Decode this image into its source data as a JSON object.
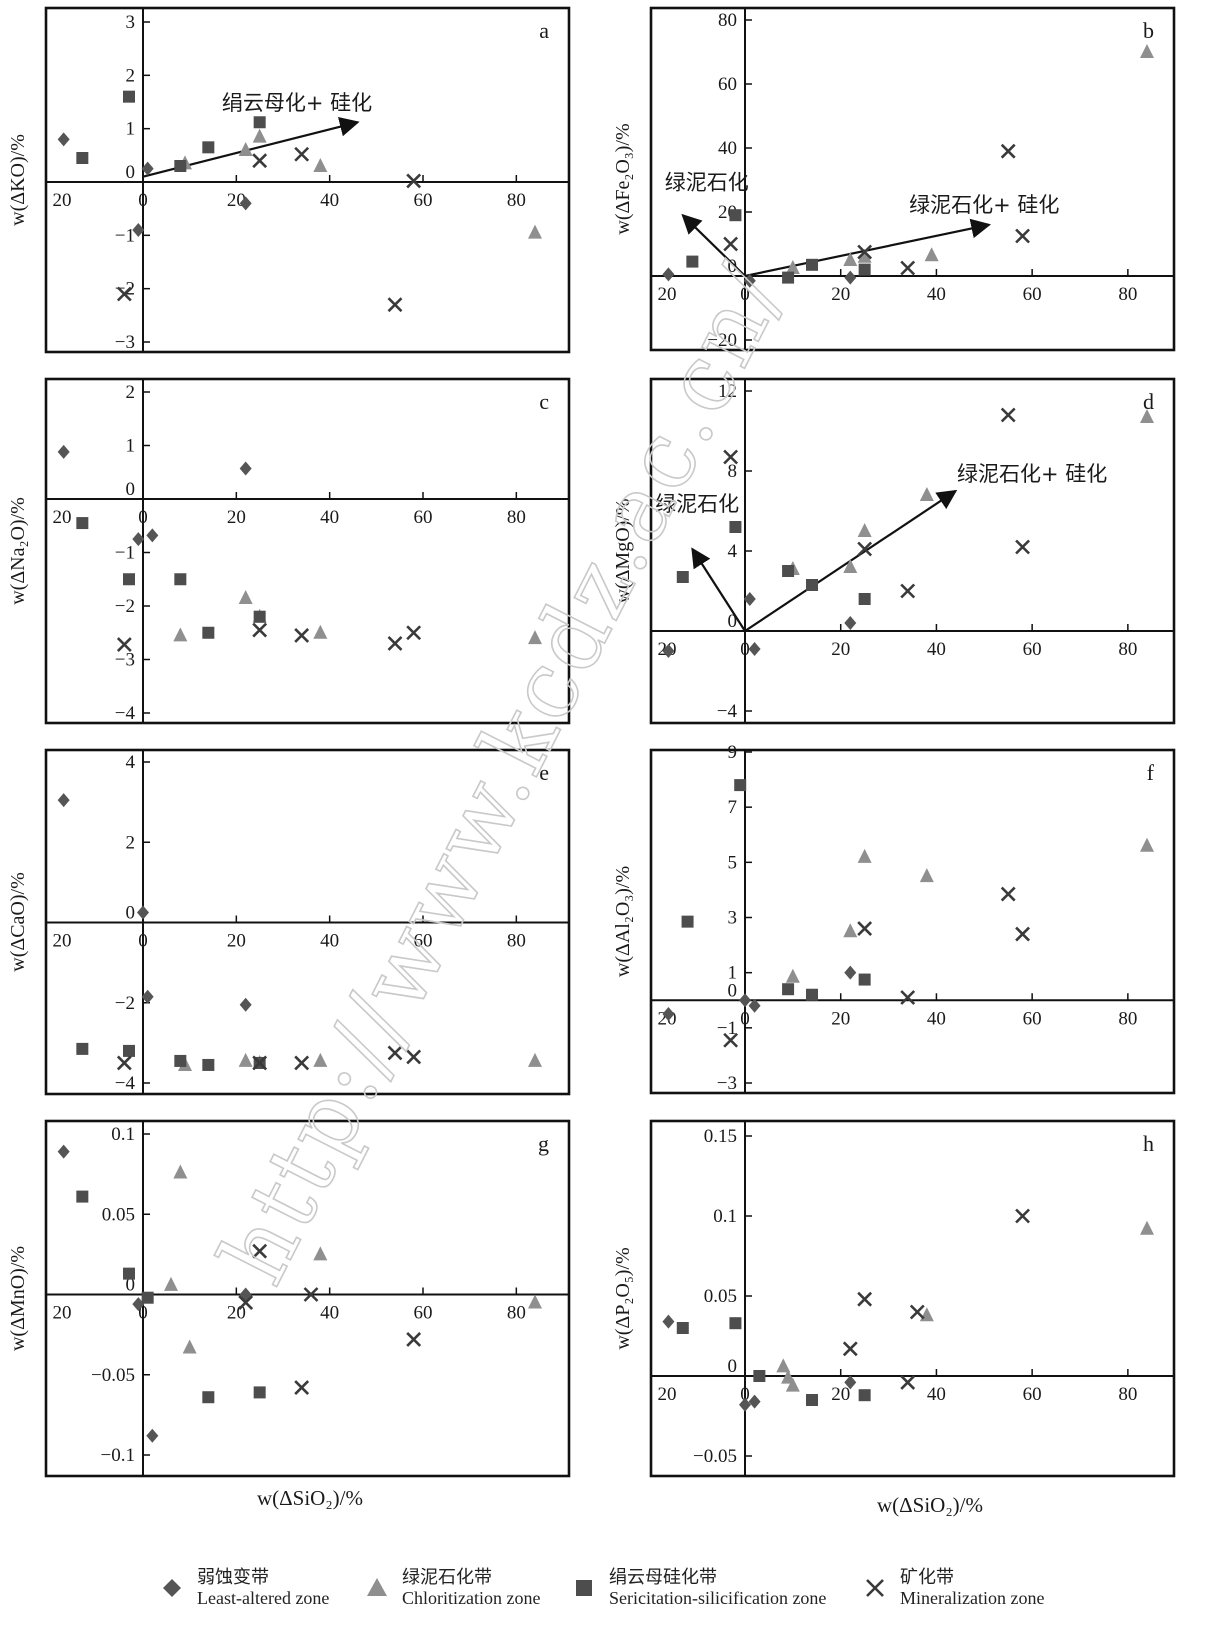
{
  "colors": {
    "diamond": "#555555",
    "triangle": "#8f8f8f",
    "square": "#4d4d4d",
    "cross": "#3a3a3a",
    "axis": "#111111"
  },
  "watermark": "http://www.kcdz.ac.cn/",
  "x_title_left": "w(ΔSiO₂)/%",
  "x_title_right": "w(ΔSiO₂)/%",
  "legend": [
    {
      "symbol": "diamond",
      "zh": "弱蚀变带",
      "en": "Least-altered zone"
    },
    {
      "symbol": "triangle",
      "zh": "绿泥石化带",
      "en": "Chloritization zone"
    },
    {
      "symbol": "square",
      "zh": "绢云母硅化带",
      "en": "Sericitation-silicification zone"
    },
    {
      "symbol": "cross",
      "zh": "矿化带",
      "en": "Mineralization zone"
    }
  ],
  "chart_data": [
    {
      "id": "a",
      "type": "scatter",
      "label": "a",
      "ylabel": "w(ΔKO)/%",
      "xlim": [
        -20,
        90
      ],
      "ylim": [
        -3,
        3
      ],
      "xticks": [
        -20,
        0,
        20,
        40,
        60,
        80
      ],
      "xtick_labels": [
        "20",
        "0",
        "20",
        "40",
        "60",
        "80"
      ],
      "yticks": [
        3,
        2,
        1,
        0,
        -1,
        -2,
        -3
      ],
      "ytick_labels": [
        "3",
        "2",
        "1",
        "0",
        "−1",
        "−2",
        "−3"
      ],
      "series": [
        {
          "symbol": "diamond",
          "points": [
            [
              -17,
              0.8
            ],
            [
              1,
              0.25
            ],
            [
              22,
              -0.4
            ],
            [
              -1,
              -0.9
            ]
          ]
        },
        {
          "symbol": "triangle",
          "points": [
            [
              9,
              0.35
            ],
            [
              22,
              0.6
            ],
            [
              25,
              0.85
            ],
            [
              38,
              0.3
            ],
            [
              84,
              -0.95
            ]
          ]
        },
        {
          "symbol": "square",
          "points": [
            [
              -13,
              0.45
            ],
            [
              -3,
              1.6
            ],
            [
              8,
              0.3
            ],
            [
              14,
              0.65
            ],
            [
              25,
              1.12
            ]
          ]
        },
        {
          "symbol": "cross",
          "points": [
            [
              -4,
              -2.1
            ],
            [
              25,
              0.4
            ],
            [
              34,
              0.52
            ],
            [
              54,
              -2.3
            ],
            [
              58,
              0.02
            ]
          ]
        }
      ],
      "annotations": [
        {
          "text": "绢云母化+ 硅化",
          "arrow_from": [
            0,
            0.1
          ],
          "arrow_to": [
            46,
            1.12
          ],
          "text_at": [
            33,
            1.35
          ]
        }
      ]
    },
    {
      "id": "b",
      "type": "scatter",
      "label": "b",
      "ylabel": "w(ΔFe₂O₃)/%",
      "xlim": [
        -20,
        90
      ],
      "ylim": [
        -20,
        80
      ],
      "xticks": [
        -20,
        0,
        20,
        40,
        60,
        80
      ],
      "xtick_labels": [
        "20",
        "0",
        "20",
        "40",
        "60",
        "80"
      ],
      "yticks": [
        80,
        60,
        40,
        20,
        0,
        -20
      ],
      "ytick_labels": [
        "80",
        "60",
        "40",
        "20",
        "0",
        "−20"
      ],
      "series": [
        {
          "symbol": "diamond",
          "points": [
            [
              -16,
              0.5
            ],
            [
              1,
              -1.5
            ],
            [
              22,
              -0.5
            ]
          ]
        },
        {
          "symbol": "triangle",
          "points": [
            [
              10,
              2.5
            ],
            [
              22,
              5
            ],
            [
              25,
              6
            ],
            [
              39,
              6.5
            ],
            [
              84,
              70
            ]
          ]
        },
        {
          "symbol": "square",
          "points": [
            [
              -11,
              4.5
            ],
            [
              -2,
              19
            ],
            [
              9,
              -0.5
            ],
            [
              14,
              3.5
            ],
            [
              25,
              2
            ]
          ]
        },
        {
          "symbol": "cross",
          "points": [
            [
              -3,
              10
            ],
            [
              25,
              7.5
            ],
            [
              34,
              2.5
            ],
            [
              55,
              39
            ],
            [
              58,
              12.5
            ]
          ]
        }
      ],
      "annotations": [
        {
          "text": "绿泥石化",
          "arrow_from": [
            0,
            0
          ],
          "arrow_to": [
            -13,
            19
          ],
          "text_at": [
            -8,
            27
          ]
        },
        {
          "text": "绿泥石化+ 硅化",
          "arrow_from": [
            0,
            0
          ],
          "arrow_to": [
            51,
            16
          ],
          "text_at": [
            50,
            20
          ]
        }
      ]
    },
    {
      "id": "c",
      "type": "scatter",
      "label": "c",
      "ylabel": "w(ΔNa₂O)/%",
      "xlim": [
        -20,
        90
      ],
      "ylim": [
        -4,
        2
      ],
      "xticks": [
        -20,
        0,
        20,
        40,
        60,
        80
      ],
      "xtick_labels": [
        "20",
        "0",
        "20",
        "40",
        "60",
        "80"
      ],
      "yticks": [
        2,
        1,
        0,
        -1,
        -2,
        -3,
        -4
      ],
      "ytick_labels": [
        "2",
        "1",
        "0",
        "−1",
        "−2",
        "−3",
        "−4"
      ],
      "series": [
        {
          "symbol": "diamond",
          "points": [
            [
              -17,
              0.88
            ],
            [
              22,
              0.57
            ],
            [
              -1,
              -0.75
            ],
            [
              2,
              -0.68
            ]
          ]
        },
        {
          "symbol": "triangle",
          "points": [
            [
              8,
              -2.55
            ],
            [
              22,
              -1.85
            ],
            [
              25,
              -2.2
            ],
            [
              38,
              -2.5
            ],
            [
              84,
              -2.6
            ]
          ]
        },
        {
          "symbol": "square",
          "points": [
            [
              -13,
              -0.45
            ],
            [
              -3,
              -1.5
            ],
            [
              8,
              -1.5
            ],
            [
              14,
              -2.5
            ],
            [
              25,
              -2.2
            ]
          ]
        },
        {
          "symbol": "cross",
          "points": [
            [
              -4,
              -2.72
            ],
            [
              25,
              -2.45
            ],
            [
              34,
              -2.55
            ],
            [
              54,
              -2.7
            ],
            [
              58,
              -2.5
            ]
          ]
        }
      ]
    },
    {
      "id": "d",
      "type": "scatter",
      "label": "d",
      "ylabel": "w(ΔMgO)/%",
      "xlim": [
        -20,
        90
      ],
      "ylim": [
        -4,
        12
      ],
      "xticks": [
        -20,
        0,
        20,
        40,
        60,
        80
      ],
      "xtick_labels": [
        "20",
        "0",
        "20",
        "40",
        "60",
        "80"
      ],
      "yticks": [
        12,
        8,
        4,
        0,
        -4
      ],
      "ytick_labels": [
        "12",
        "8",
        "4",
        "0",
        "−4"
      ],
      "series": [
        {
          "symbol": "diamond",
          "points": [
            [
              -16,
              -1
            ],
            [
              1,
              1.6
            ],
            [
              2,
              -0.9
            ],
            [
              22,
              0.4
            ]
          ]
        },
        {
          "symbol": "triangle",
          "points": [
            [
              10,
              3.1
            ],
            [
              22,
              3.2
            ],
            [
              25,
              5
            ],
            [
              38,
              6.8
            ],
            [
              84,
              10.7
            ]
          ]
        },
        {
          "symbol": "square",
          "points": [
            [
              -13,
              2.7
            ],
            [
              -2,
              5.2
            ],
            [
              9,
              3
            ],
            [
              14,
              2.3
            ],
            [
              25,
              1.6
            ]
          ]
        },
        {
          "symbol": "cross",
          "points": [
            [
              -3,
              8.7
            ],
            [
              25,
              4.1
            ],
            [
              34,
              2
            ],
            [
              55,
              10.8
            ],
            [
              58,
              4.2
            ]
          ]
        }
      ],
      "annotations": [
        {
          "text": "绿泥石化",
          "arrow_from": [
            0,
            0
          ],
          "arrow_to": [
            -11,
            4.1
          ],
          "text_at": [
            -10,
            6
          ]
        },
        {
          "text": "绿泥石化+ 硅化",
          "arrow_from": [
            0,
            0
          ],
          "arrow_to": [
            44,
            7
          ],
          "text_at": [
            60,
            7.5
          ]
        }
      ]
    },
    {
      "id": "e",
      "type": "scatter",
      "label": "e",
      "ylabel": "w(ΔCaO)/%",
      "xlim": [
        -20,
        90
      ],
      "ylim": [
        -4,
        4
      ],
      "xticks": [
        -20,
        0,
        20,
        40,
        60,
        80
      ],
      "xtick_labels": [
        "20",
        "0",
        "20",
        "40",
        "60",
        "80"
      ],
      "yticks": [
        4,
        2,
        0,
        -2,
        -4
      ],
      "ytick_labels": [
        "4",
        "2",
        "0",
        "−2",
        "−4"
      ],
      "series": [
        {
          "symbol": "diamond",
          "points": [
            [
              -17,
              3.05
            ],
            [
              0,
              0.25
            ],
            [
              1,
              -1.85
            ],
            [
              22,
              -2.05
            ]
          ]
        },
        {
          "symbol": "triangle",
          "points": [
            [
              9,
              -3.55
            ],
            [
              22,
              -3.45
            ],
            [
              25,
              -3.5
            ],
            [
              38,
              -3.45
            ],
            [
              84,
              -3.45
            ]
          ]
        },
        {
          "symbol": "square",
          "points": [
            [
              -13,
              -3.15
            ],
            [
              -3,
              -3.2
            ],
            [
              8,
              -3.45
            ],
            [
              14,
              -3.55
            ],
            [
              25,
              -3.5
            ]
          ]
        },
        {
          "symbol": "cross",
          "points": [
            [
              -4,
              -3.5
            ],
            [
              25,
              -3.5
            ],
            [
              34,
              -3.5
            ],
            [
              54,
              -3.25
            ],
            [
              58,
              -3.35
            ]
          ]
        }
      ]
    },
    {
      "id": "f",
      "type": "scatter",
      "label": "f",
      "ylabel": "w(ΔAl₂O₃)/%",
      "xlim": [
        -20,
        90
      ],
      "ylim": [
        -3,
        9
      ],
      "xticks": [
        -20,
        0,
        20,
        40,
        60,
        80
      ],
      "xtick_labels": [
        "20",
        "0",
        "20",
        "40",
        "60",
        "80"
      ],
      "yticks": [
        9,
        7,
        5,
        3,
        1,
        0,
        -1,
        -3
      ],
      "ytick_labels": [
        "9",
        "7",
        "5",
        "3",
        "1",
        "0",
        "−1",
        "−3"
      ],
      "series": [
        {
          "symbol": "diamond",
          "points": [
            [
              -16,
              -0.5
            ],
            [
              0,
              0
            ],
            [
              2,
              -0.2
            ],
            [
              22,
              1
            ]
          ]
        },
        {
          "symbol": "triangle",
          "points": [
            [
              10,
              0.85
            ],
            [
              22,
              2.5
            ],
            [
              25,
              5.2
            ],
            [
              38,
              4.5
            ],
            [
              84,
              5.6
            ]
          ]
        },
        {
          "symbol": "square",
          "points": [
            [
              -12,
              2.85
            ],
            [
              -1,
              7.8
            ],
            [
              9,
              0.4
            ],
            [
              14,
              0.2
            ],
            [
              25,
              0.75
            ]
          ]
        },
        {
          "symbol": "cross",
          "points": [
            [
              -3,
              -1.45
            ],
            [
              25,
              2.6
            ],
            [
              34,
              0.1
            ],
            [
              55,
              3.85
            ],
            [
              58,
              2.4
            ]
          ]
        }
      ]
    },
    {
      "id": "g",
      "type": "scatter",
      "label": "g",
      "ylabel": "w(ΔMnO)/%",
      "xlim": [
        -20,
        90
      ],
      "ylim": [
        -0.1,
        0.1
      ],
      "xticks": [
        -20,
        0,
        20,
        40,
        60,
        80
      ],
      "xtick_labels": [
        "20",
        "0",
        "20",
        "40",
        "60",
        "80"
      ],
      "yticks": [
        0.1,
        0.05,
        0,
        -0.05,
        -0.1
      ],
      "ytick_labels": [
        "0.1",
        "0.05",
        "0",
        "−0.05",
        "−0.1"
      ],
      "series": [
        {
          "symbol": "diamond",
          "points": [
            [
              -17,
              0.089
            ],
            [
              -1,
              -0.006
            ],
            [
              2,
              -0.088
            ],
            [
              22,
              0
            ]
          ]
        },
        {
          "symbol": "triangle",
          "points": [
            [
              6,
              0.006
            ],
            [
              8,
              0.076
            ],
            [
              10,
              -0.033
            ],
            [
              38,
              0.025
            ],
            [
              84,
              -0.005
            ]
          ]
        },
        {
          "symbol": "square",
          "points": [
            [
              -13,
              0.061
            ],
            [
              -3,
              0.013
            ],
            [
              1,
              -0.002
            ],
            [
              14,
              -0.064
            ],
            [
              25,
              -0.061
            ]
          ]
        },
        {
          "symbol": "cross",
          "points": [
            [
              22,
              -0.005
            ],
            [
              25,
              0.027
            ],
            [
              34,
              -0.058
            ],
            [
              36,
              0
            ],
            [
              58,
              -0.028
            ]
          ]
        }
      ]
    },
    {
      "id": "h",
      "type": "scatter",
      "label": "h",
      "ylabel": "w(ΔP₂O₅)/%",
      "xlim": [
        -20,
        90
      ],
      "ylim": [
        -0.05,
        0.15
      ],
      "xticks": [
        -20,
        0,
        20,
        40,
        60,
        80
      ],
      "xtick_labels": [
        "20",
        "0",
        "20",
        "40",
        "60",
        "80"
      ],
      "yticks": [
        0.15,
        0.1,
        0.05,
        0,
        -0.05
      ],
      "ytick_labels": [
        "0.15",
        "0.1",
        "0.05",
        "0",
        "−0.05"
      ],
      "series": [
        {
          "symbol": "diamond",
          "points": [
            [
              -16,
              0.034
            ],
            [
              0,
              -0.018
            ],
            [
              2,
              -0.016
            ],
            [
              22,
              -0.004
            ]
          ]
        },
        {
          "symbol": "triangle",
          "points": [
            [
              8,
              0.006
            ],
            [
              10,
              -0.006
            ],
            [
              38,
              0.038
            ],
            [
              84,
              0.092
            ],
            [
              9,
              -0.001
            ]
          ]
        },
        {
          "symbol": "square",
          "points": [
            [
              -13,
              0.03
            ],
            [
              -2,
              0.033
            ],
            [
              3,
              0
            ],
            [
              14,
              -0.015
            ],
            [
              25,
              -0.012
            ]
          ]
        },
        {
          "symbol": "cross",
          "points": [
            [
              22,
              0.017
            ],
            [
              25,
              0.048
            ],
            [
              34,
              -0.004
            ],
            [
              36,
              0.04
            ],
            [
              58,
              0.1
            ]
          ]
        }
      ]
    }
  ]
}
